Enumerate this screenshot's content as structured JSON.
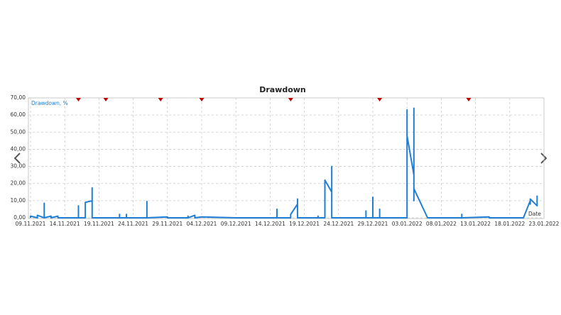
{
  "chart_data": {
    "type": "line",
    "title": "Drawdown",
    "x_label": "Date",
    "xlim": [
      "09.11.2021",
      "23.01.2022"
    ],
    "xticks": [
      "09.11.2021",
      "14.11.2021",
      "19.11.2021",
      "24.11.2021",
      "29.11.2021",
      "04.12.2021",
      "09.12.2021",
      "14.12.2021",
      "19.12.2021",
      "24.12.2021",
      "29.12.2021",
      "03.01.2022",
      "08.01.2022",
      "13.01.2022",
      "18.01.2022",
      "23.01.2022"
    ],
    "ylim": [
      0,
      70
    ],
    "yticks": [
      {
        "value": 0,
        "label": "0,00"
      },
      {
        "value": 10,
        "label": "10,00"
      },
      {
        "value": 20,
        "label": "20,00"
      },
      {
        "value": 30,
        "label": "30,00"
      },
      {
        "value": 40,
        "label": "40,00"
      },
      {
        "value": 50,
        "label": "50,00"
      },
      {
        "value": 60,
        "label": "60,00"
      },
      {
        "value": 70,
        "label": "70,00"
      }
    ],
    "grid": true,
    "markers": {
      "color": "#c00000",
      "x": [
        "16.11.2021",
        "20.11.2021",
        "28.11.2021",
        "04.12.2021",
        "17.12.2021",
        "30.12.2021",
        "12.01.2022"
      ]
    },
    "series": [
      {
        "name": "Drawdown, %",
        "color": "#1f7fd6",
        "x": [
          "09.11.2021",
          "09.11.2021",
          "10.11.2021",
          "10.11.2021",
          "11.11.2021",
          "11.11.2021",
          "11.11.2021",
          "11.11.2021",
          "12.11.2021",
          "12.11.2021",
          "13.11.2021",
          "13.11.2021",
          "16.11.2021",
          "16.11.2021",
          "16.11.2021",
          "17.11.2021",
          "17.11.2021",
          "18.11.2021",
          "18.11.2021",
          "18.11.2021",
          "18.11.2021",
          "18.11.2021",
          "18.11.2021",
          "22.11.2021",
          "22.11.2021",
          "22.11.2021",
          "23.11.2021",
          "23.11.2021",
          "23.11.2021",
          "26.11.2021",
          "26.11.2021",
          "26.11.2021",
          "29.11.2021",
          "29.11.2021",
          "02.12.2021",
          "02.12.2021",
          "02.12.2021",
          "03.12.2021",
          "03.12.2021",
          "04.12.2021",
          "09.12.2021",
          "15.12.2021",
          "15.12.2021",
          "15.12.2021",
          "17.12.2021",
          "17.12.2021",
          "18.12.2021",
          "18.12.2021",
          "18.12.2021",
          "21.12.2021",
          "21.12.2021",
          "21.12.2021",
          "22.12.2021",
          "22.12.2021",
          "22.12.2021",
          "23.12.2021",
          "23.12.2021",
          "23.12.2021",
          "23.12.2021",
          "28.12.2021",
          "28.12.2021",
          "28.12.2021",
          "29.12.2021",
          "29.12.2021",
          "29.12.2021",
          "29.12.2021",
          "29.12.2021",
          "30.12.2021",
          "30.12.2021",
          "30.12.2021",
          "30.12.2021",
          "03.01.2022",
          "03.01.2022",
          "03.01.2022",
          "03.01.2022",
          "04.01.2022",
          "04.01.2022",
          "04.01.2022",
          "04.01.2022",
          "04.01.2022",
          "06.01.2022",
          "11.01.2022",
          "11.01.2022",
          "11.01.2022",
          "15.01.2022",
          "15.01.2022",
          "20.01.2022",
          "21.01.2022",
          "21.01.2022",
          "21.01.2022",
          "22.01.2022",
          "22.01.2022"
        ],
        "values": [
          0,
          1,
          0,
          1.5,
          0,
          7,
          8.5,
          0,
          1,
          0,
          1,
          0,
          0,
          7,
          0,
          0,
          9,
          10,
          17.5,
          8,
          15,
          10,
          0,
          0,
          2,
          0,
          0,
          2,
          0,
          0,
          9.5,
          0,
          0.5,
          0,
          0,
          1,
          0,
          1.5,
          0,
          0.5,
          0,
          0,
          5,
          0,
          0,
          2,
          8,
          11,
          0,
          0,
          1,
          0,
          0,
          10,
          22,
          15,
          30,
          17,
          0,
          0,
          4,
          0,
          0,
          12,
          2,
          4,
          0,
          0,
          5,
          1,
          0,
          0,
          63,
          30,
          48,
          25,
          35,
          64,
          10,
          17,
          0,
          0,
          2,
          0,
          0.5,
          0,
          0,
          10,
          8,
          11,
          7,
          13
        ]
      }
    ]
  }
}
